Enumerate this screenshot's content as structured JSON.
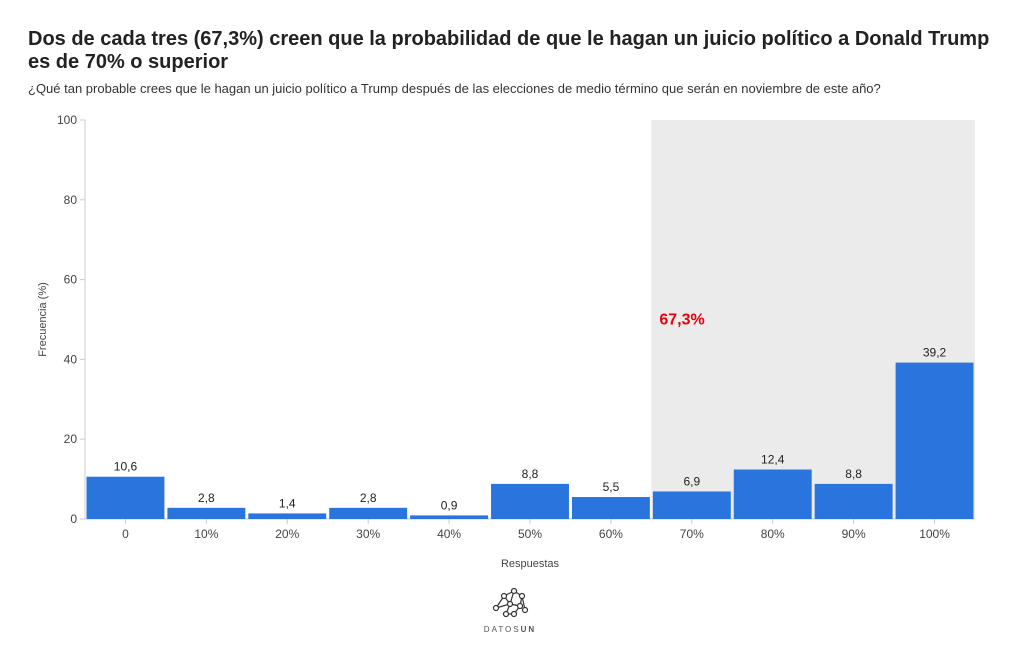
{
  "title": "Dos de cada tres (67,3%) creen que la probabilidad de que le hagan un juicio político a Donald Trump es de 70% o superior",
  "subtitle": "¿Qué tan probable crees que le hagan un juicio político a Trump después de las elecciones de medio término que serán en noviembre de este año?",
  "logo": {
    "text_light": "DATOS",
    "text_bold": "UN"
  },
  "chart_data": {
    "type": "bar",
    "categories": [
      "0",
      "10%",
      "20%",
      "30%",
      "40%",
      "50%",
      "60%",
      "70%",
      "80%",
      "90%",
      "100%"
    ],
    "values": [
      10.6,
      2.8,
      1.4,
      2.8,
      0.9,
      8.8,
      5.5,
      6.9,
      12.4,
      8.8,
      39.2
    ],
    "value_labels": [
      "10,6",
      "2,8",
      "1,4",
      "2,8",
      "0,9",
      "8,8",
      "5,5",
      "6,9",
      "12,4",
      "8,8",
      "39,2"
    ],
    "xlabel": "Respuestas",
    "ylabel": "Frecuencia (%)",
    "ylim": [
      0,
      100
    ],
    "yticks": [
      0,
      20,
      40,
      60,
      80,
      100
    ],
    "grid": false,
    "highlight": {
      "from_category": "70%",
      "to_category": "100%",
      "label": "67,3%",
      "label_color": "#e8000b",
      "fill": "#ebebeb"
    },
    "bar_color": "#2a74dd"
  }
}
